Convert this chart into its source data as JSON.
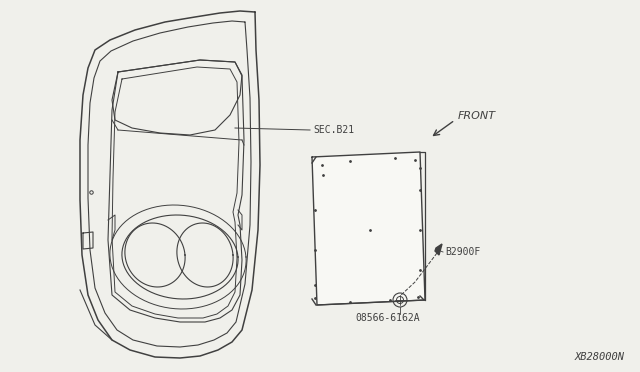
{
  "bg_color": "#f0f0eb",
  "line_color": "#404040",
  "text_color": "#404040",
  "title_bottom_right": "XB28000N",
  "label_sec": "SEC.B21",
  "label_front": "FRONT",
  "label_part1": "B2900F",
  "label_part2": "08566-6162A",
  "fig_width": 6.4,
  "fig_height": 3.72,
  "dpi": 100
}
